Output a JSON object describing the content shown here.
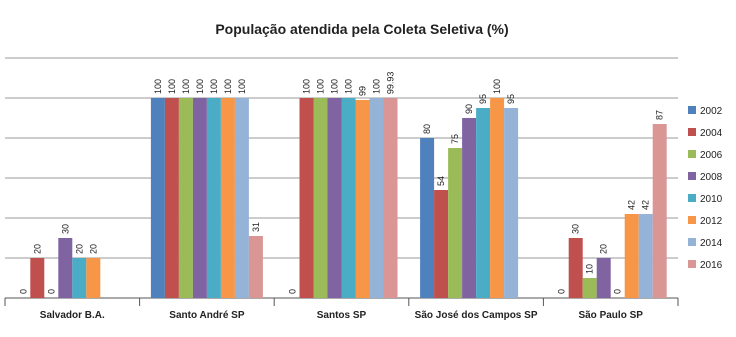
{
  "chart_data": {
    "type": "bar",
    "title": "População atendida pela Coleta Seletiva  (%)",
    "categories": [
      "Salvador B.A.",
      "Santo André SP",
      "Santos SP",
      "São José dos Campos SP",
      "São Paulo SP"
    ],
    "series": [
      {
        "name": "2002",
        "color": "#4f81bd",
        "values": [
          0,
          100,
          0,
          80,
          0
        ]
      },
      {
        "name": "2004",
        "color": "#c0504d",
        "values": [
          20,
          100,
          100,
          54,
          30
        ]
      },
      {
        "name": "2006",
        "color": "#9bbb59",
        "values": [
          0,
          100,
          100,
          75,
          10
        ]
      },
      {
        "name": "2008",
        "color": "#8064a2",
        "values": [
          30,
          100,
          100,
          90,
          20
        ]
      },
      {
        "name": "2010",
        "color": "#4bacc6",
        "values": [
          20,
          100,
          100,
          95,
          0
        ]
      },
      {
        "name": "2012",
        "color": "#f79646",
        "values": [
          20,
          100,
          99,
          100,
          42
        ]
      },
      {
        "name": "2014",
        "color": "#95b3d7",
        "values": [
          null,
          100,
          100,
          95,
          42
        ]
      },
      {
        "name": "2016",
        "color": "#d99694",
        "values": [
          null,
          31,
          99.93,
          null,
          87
        ]
      }
    ],
    "ylim": [
      0,
      120
    ],
    "yticks": [
      0,
      20,
      40,
      60,
      80,
      100,
      120
    ],
    "grid": true,
    "legend": "right"
  }
}
